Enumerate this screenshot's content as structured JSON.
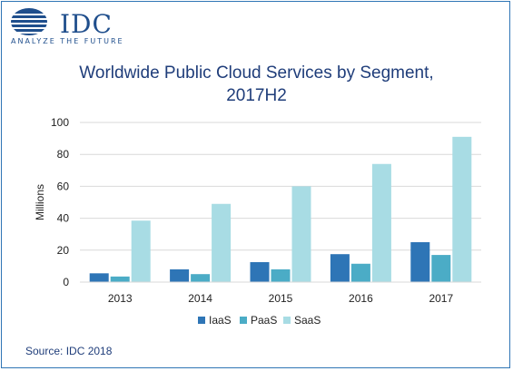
{
  "logo": {
    "word": "IDC",
    "tagline": "ANALYZE THE FUTURE"
  },
  "title_line1": "Worldwide Public Cloud Services by Segment,",
  "title_line2": "2017H2",
  "source": "Source: IDC 2018",
  "colors": {
    "IaaS": "#2e75b6",
    "PaaS": "#4bacc6",
    "SaaS": "#a8dce4",
    "grid": "#d9d9d9",
    "brand": "#1f4e8c"
  },
  "chart_data": {
    "type": "bar",
    "categories": [
      "2013",
      "2014",
      "2015",
      "2016",
      "2017"
    ],
    "series": [
      {
        "name": "IaaS",
        "values": [
          5.5,
          8,
          12.5,
          17.5,
          25
        ]
      },
      {
        "name": "PaaS",
        "values": [
          3.5,
          5,
          8,
          11.5,
          17
        ]
      },
      {
        "name": "SaaS",
        "values": [
          38.5,
          49,
          60,
          74,
          91
        ]
      }
    ],
    "ylabel": "Millions",
    "yticks": [
      "0",
      "20",
      "40",
      "60",
      "80",
      "100"
    ],
    "ylim": [
      0,
      100
    ],
    "grid": true,
    "legend": "bottom"
  }
}
